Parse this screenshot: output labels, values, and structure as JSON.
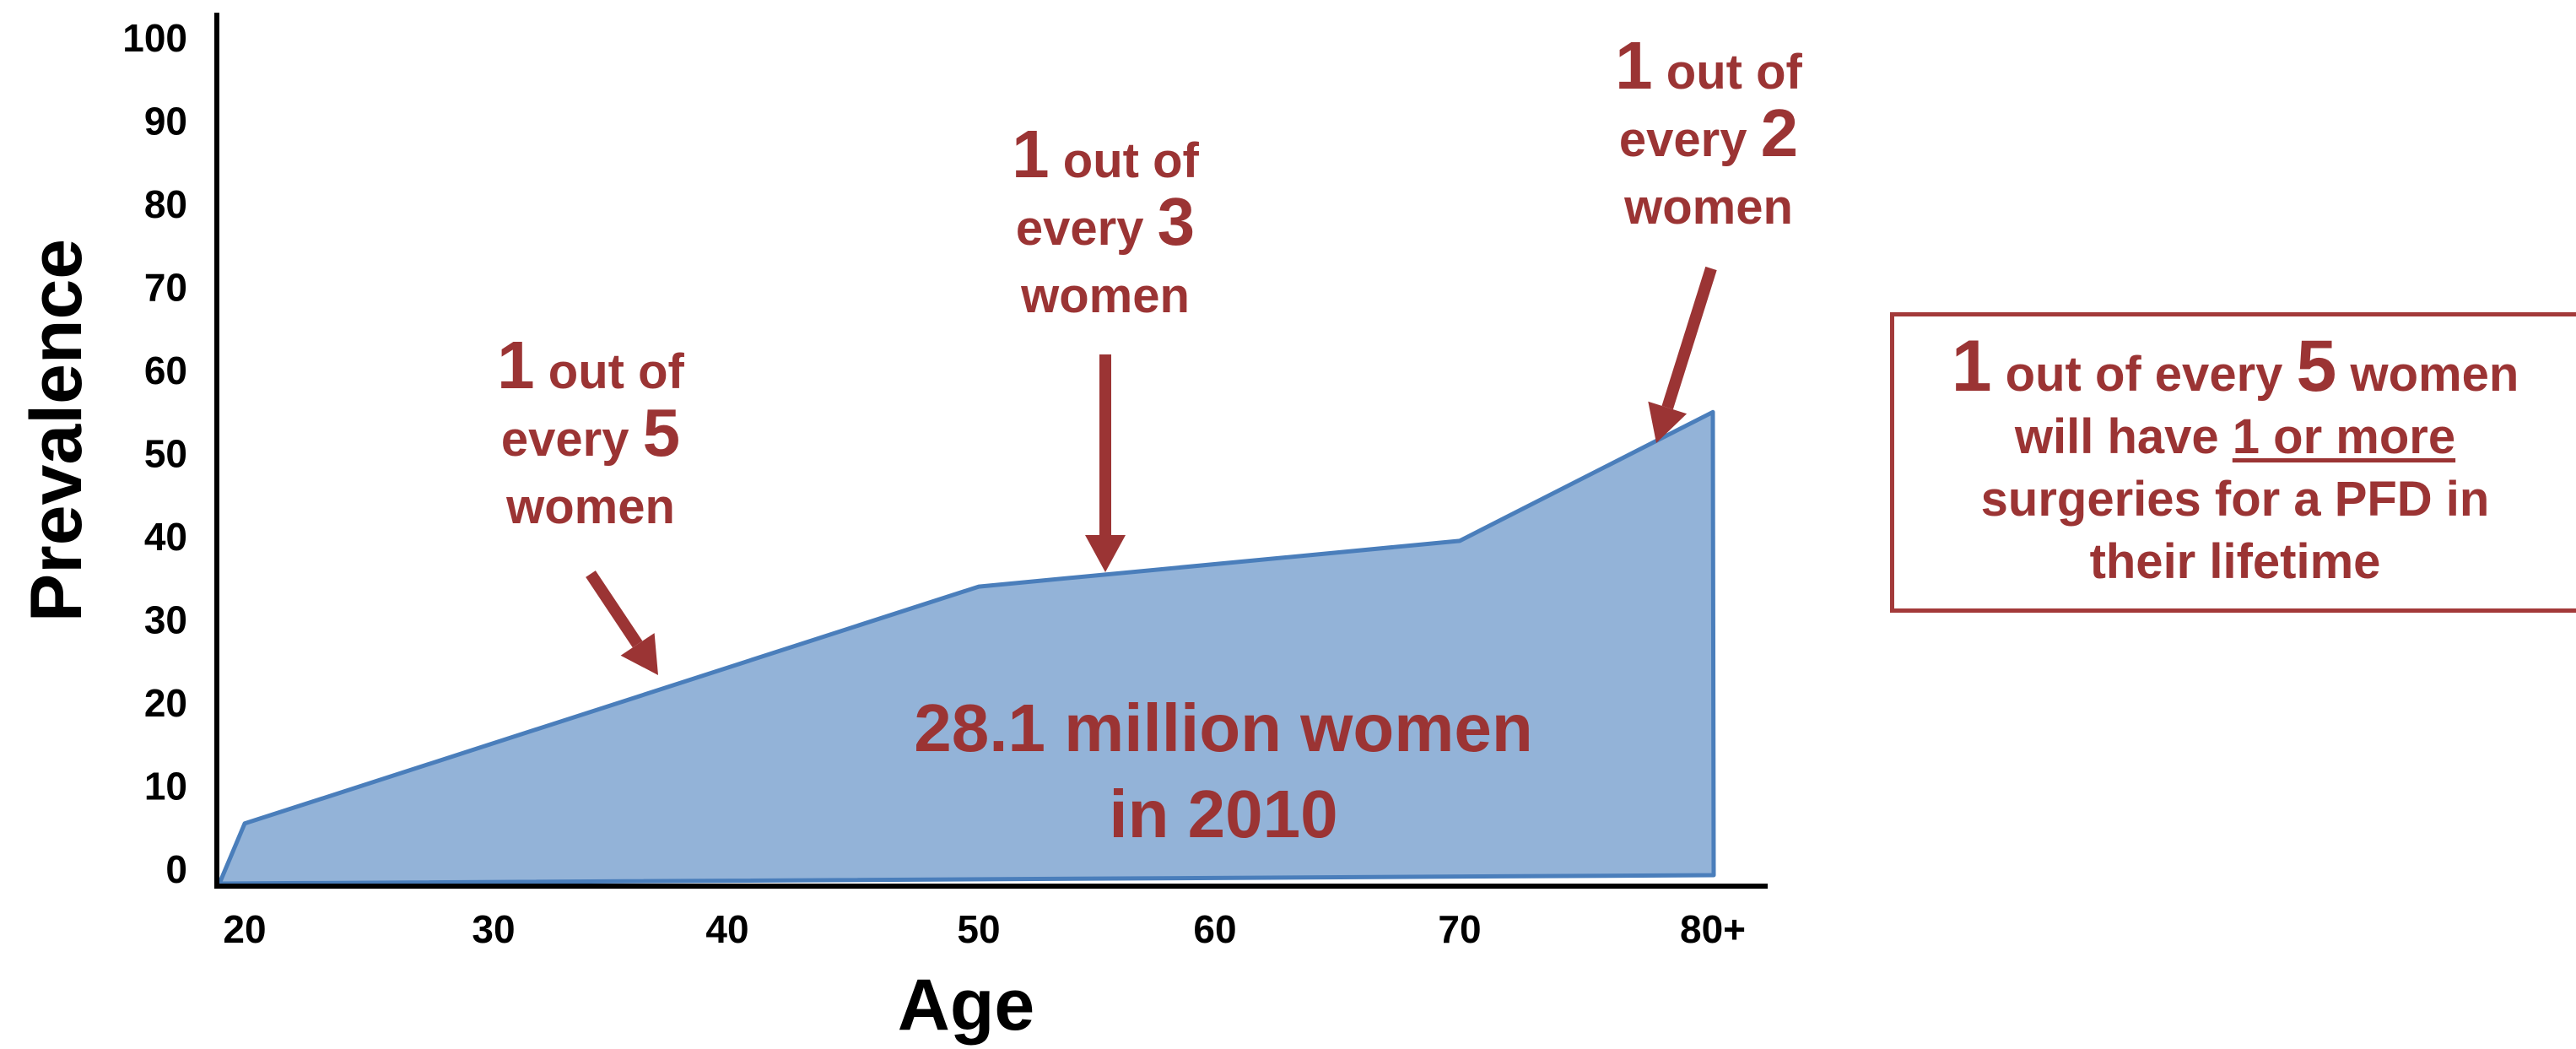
{
  "chart_data": {
    "type": "area",
    "xlabel": "Age",
    "ylabel": "Prevalence",
    "x_ticks": [
      "20",
      "30",
      "40",
      "50",
      "60",
      "70",
      "80+"
    ],
    "y_ticks": [
      "0",
      "10",
      "20",
      "30",
      "40",
      "50",
      "60",
      "70",
      "80",
      "90",
      "100"
    ],
    "ylim": [
      0,
      100
    ],
    "xlim": [
      20,
      80
    ],
    "series": [
      {
        "x": [
          20,
          50,
          70,
          80
        ],
        "y": [
          5.5,
          34,
          39.5,
          55
        ]
      }
    ],
    "fill_color": "#93b3d8",
    "line_color": "#4a7ebb",
    "text_color": "#9b3434",
    "area_label": {
      "line1": "28.1 million women",
      "line2": "in 2010"
    },
    "annotations": [
      {
        "num": "1",
        "out_of": "out of",
        "every": "every",
        "denominator": "5",
        "women": "women",
        "x": 37.5,
        "y": 21.5
      },
      {
        "num": "1",
        "out_of": "out of",
        "every": "every",
        "denominator": "3",
        "women": "women",
        "x": 55,
        "y": 35.5
      },
      {
        "num": "1",
        "out_of": "out of",
        "every": "every",
        "denominator": "2",
        "women": "women",
        "x": 78,
        "y": 50.5
      }
    ]
  },
  "summary_box": {
    "num": "1",
    "text1": "out of every",
    "denominator": "5",
    "text2": "women",
    "line2_prefix": "will have",
    "line2_underlined": "1 or more",
    "line3": "surgeries for a PFD in",
    "line4": "their lifetime"
  }
}
